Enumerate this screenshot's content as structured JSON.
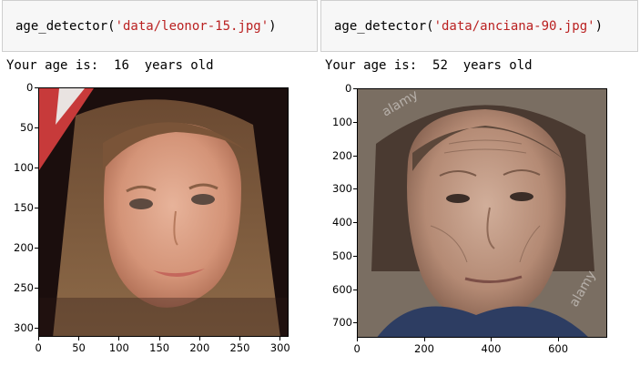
{
  "cells": [
    {
      "fn": "age_detector(",
      "arg": "'data/leonor-15.jpg'",
      "close": ")"
    },
    {
      "fn": "age_detector(",
      "arg": "'data/anciana-90.jpg'",
      "close": ")"
    }
  ],
  "outputs": [
    {
      "prefix": "Your age is:  ",
      "age": "16",
      "suffix": "  years old"
    },
    {
      "prefix": "Your age is:  ",
      "age": "52",
      "suffix": "  years old"
    }
  ],
  "plot1": {
    "image": "portrait of a young girl",
    "xticks": [
      "0",
      "50",
      "100",
      "150",
      "200",
      "250",
      "300"
    ],
    "yticks": [
      "0",
      "50",
      "100",
      "150",
      "200",
      "250",
      "300"
    ]
  },
  "plot2": {
    "image": "portrait of an elderly woman",
    "watermark": "alamy",
    "xticks": [
      "0",
      "200",
      "400",
      "600"
    ],
    "yticks": [
      "0",
      "100",
      "200",
      "300",
      "400",
      "500",
      "600",
      "700"
    ]
  }
}
